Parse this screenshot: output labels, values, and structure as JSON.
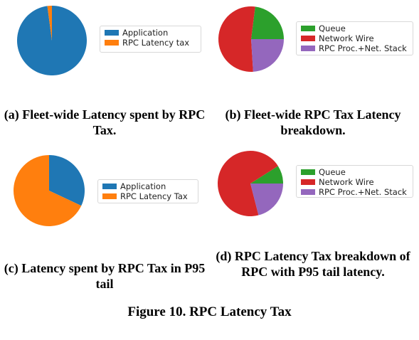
{
  "colors": {
    "blue": "#1f77b4",
    "orange": "#ff7f0e",
    "green": "#2ca02c",
    "red": "#d62728",
    "purple": "#9467bd"
  },
  "figure_title": "Figure 10. RPC Latency Tax",
  "chart_data": [
    {
      "type": "pie",
      "caption": "(a) Fleet-wide Latency spent by RPC Tax.",
      "legend_placement": "right",
      "slices": [
        {
          "label": "Application",
          "value": 97.9,
          "color": "#1f77b4"
        },
        {
          "label": "RPC Latency tax",
          "value": 2.1,
          "color": "#ff7f0e"
        }
      ]
    },
    {
      "type": "pie",
      "caption": "(b) Fleet-wide RPC Tax Latency breakdown.",
      "legend_placement": "right",
      "slices": [
        {
          "label": "Queue",
          "value": 23,
          "color": "#2ca02c"
        },
        {
          "label": "Network Wire",
          "value": 53,
          "color": "#d62728"
        },
        {
          "label": "RPC Proc.+Net. Stack",
          "value": 24,
          "color": "#9467bd"
        }
      ]
    },
    {
      "type": "pie",
      "caption": "(c) Latency spent by RPC Tax in P95 tail",
      "legend_placement": "right",
      "slices": [
        {
          "label": "Application",
          "value": 32,
          "color": "#1f77b4"
        },
        {
          "label": "RPC  Latency Tax",
          "value": 68,
          "color": "#ff7f0e"
        }
      ]
    },
    {
      "type": "pie",
      "caption": "(d) RPC Latency Tax breakdown of RPC with P95 tail latency.",
      "legend_placement": "right",
      "slices": [
        {
          "label": "Queue",
          "value": 9,
          "color": "#2ca02c"
        },
        {
          "label": "Network Wire",
          "value": 70,
          "color": "#d62728"
        },
        {
          "label": "RPC Proc.+Net. Stack",
          "value": 21,
          "color": "#9467bd"
        }
      ]
    }
  ]
}
